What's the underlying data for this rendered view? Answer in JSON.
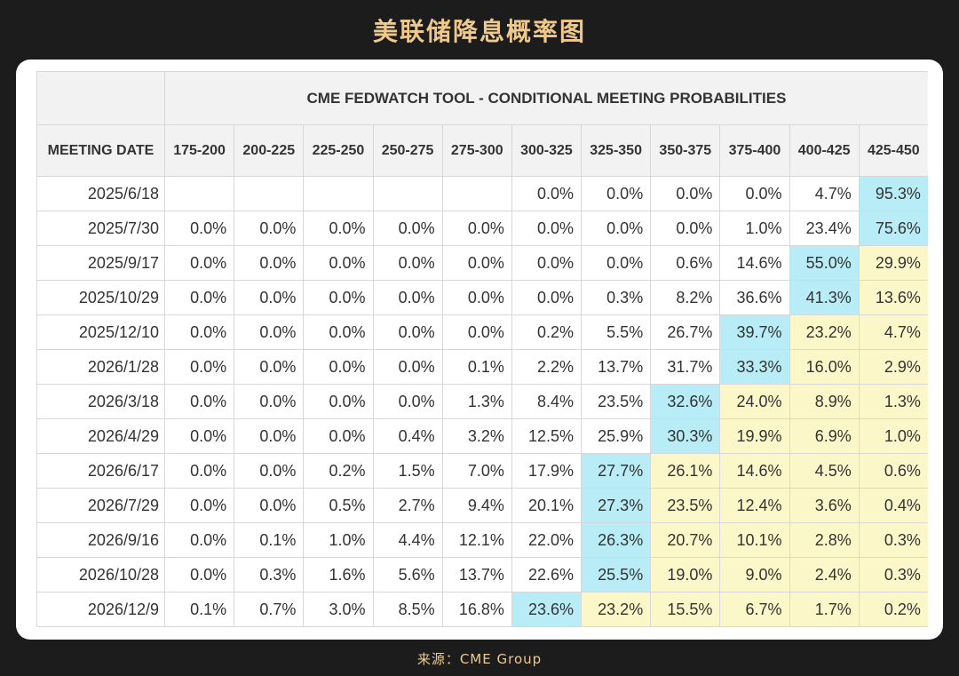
{
  "header": {
    "title": "美联储降息概率图"
  },
  "footer": {
    "source": "来源：CME Group"
  },
  "colors": {
    "max_cell": "#b8ecf6",
    "above_max_cell": "#fbf7c8",
    "title": "#f0c98a"
  },
  "chart_data": {
    "type": "table",
    "title": "CME FEDWATCH TOOL - CONDITIONAL MEETING PROBABILITIES",
    "row_header": "MEETING DATE",
    "columns": [
      "175-200",
      "200-225",
      "225-250",
      "250-275",
      "275-300",
      "300-325",
      "325-350",
      "350-375",
      "375-400",
      "400-425",
      "425-450"
    ],
    "rows": [
      {
        "date": "2025/6/18",
        "values": [
          "",
          "",
          "",
          "",
          "",
          "0.0%",
          "0.0%",
          "0.0%",
          "0.0%",
          "4.7%",
          "95.3%"
        ],
        "max_col": 10
      },
      {
        "date": "2025/7/30",
        "values": [
          "0.0%",
          "0.0%",
          "0.0%",
          "0.0%",
          "0.0%",
          "0.0%",
          "0.0%",
          "0.0%",
          "1.0%",
          "23.4%",
          "75.6%"
        ],
        "max_col": 10
      },
      {
        "date": "2025/9/17",
        "values": [
          "0.0%",
          "0.0%",
          "0.0%",
          "0.0%",
          "0.0%",
          "0.0%",
          "0.0%",
          "0.6%",
          "14.6%",
          "55.0%",
          "29.9%"
        ],
        "max_col": 9
      },
      {
        "date": "2025/10/29",
        "values": [
          "0.0%",
          "0.0%",
          "0.0%",
          "0.0%",
          "0.0%",
          "0.0%",
          "0.3%",
          "8.2%",
          "36.6%",
          "41.3%",
          "13.6%"
        ],
        "max_col": 9
      },
      {
        "date": "2025/12/10",
        "values": [
          "0.0%",
          "0.0%",
          "0.0%",
          "0.0%",
          "0.0%",
          "0.2%",
          "5.5%",
          "26.7%",
          "39.7%",
          "23.2%",
          "4.7%"
        ],
        "max_col": 8
      },
      {
        "date": "2026/1/28",
        "values": [
          "0.0%",
          "0.0%",
          "0.0%",
          "0.0%",
          "0.1%",
          "2.2%",
          "13.7%",
          "31.7%",
          "33.3%",
          "16.0%",
          "2.9%"
        ],
        "max_col": 8
      },
      {
        "date": "2026/3/18",
        "values": [
          "0.0%",
          "0.0%",
          "0.0%",
          "0.0%",
          "1.3%",
          "8.4%",
          "23.5%",
          "32.6%",
          "24.0%",
          "8.9%",
          "1.3%"
        ],
        "max_col": 7
      },
      {
        "date": "2026/4/29",
        "values": [
          "0.0%",
          "0.0%",
          "0.0%",
          "0.4%",
          "3.2%",
          "12.5%",
          "25.9%",
          "30.3%",
          "19.9%",
          "6.9%",
          "1.0%"
        ],
        "max_col": 7
      },
      {
        "date": "2026/6/17",
        "values": [
          "0.0%",
          "0.0%",
          "0.2%",
          "1.5%",
          "7.0%",
          "17.9%",
          "27.7%",
          "26.1%",
          "14.6%",
          "4.5%",
          "0.6%"
        ],
        "max_col": 6
      },
      {
        "date": "2026/7/29",
        "values": [
          "0.0%",
          "0.0%",
          "0.5%",
          "2.7%",
          "9.4%",
          "20.1%",
          "27.3%",
          "23.5%",
          "12.4%",
          "3.6%",
          "0.4%"
        ],
        "max_col": 6
      },
      {
        "date": "2026/9/16",
        "values": [
          "0.0%",
          "0.1%",
          "1.0%",
          "4.4%",
          "12.1%",
          "22.0%",
          "26.3%",
          "20.7%",
          "10.1%",
          "2.8%",
          "0.3%"
        ],
        "max_col": 6
      },
      {
        "date": "2026/10/28",
        "values": [
          "0.0%",
          "0.3%",
          "1.6%",
          "5.6%",
          "13.7%",
          "22.6%",
          "25.5%",
          "19.0%",
          "9.0%",
          "2.4%",
          "0.3%"
        ],
        "max_col": 6
      },
      {
        "date": "2026/12/9",
        "values": [
          "0.1%",
          "0.7%",
          "3.0%",
          "8.5%",
          "16.8%",
          "23.6%",
          "23.2%",
          "15.5%",
          "6.7%",
          "1.7%",
          "0.2%"
        ],
        "max_col": 5
      }
    ]
  }
}
